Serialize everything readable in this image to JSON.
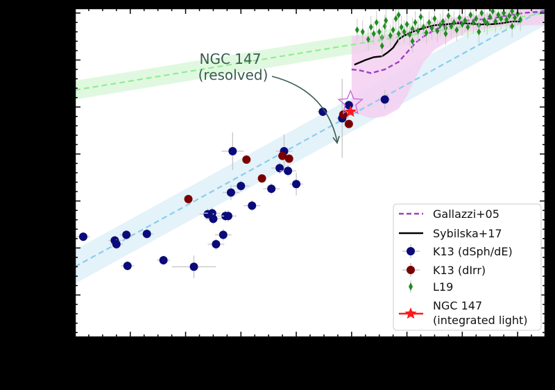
{
  "chart_data": {
    "type": "scatter",
    "title": "",
    "xlabel": "",
    "ylabel": "",
    "xlim": [
      4.0,
      12.5
    ],
    "ylim": [
      -2.95,
      0.55
    ],
    "grid": false,
    "legend": {
      "placement": "lower-right"
    },
    "colors": {
      "background": "#000000",
      "plot_bg": "#ffffff",
      "gallazzi": "#9b3fc4",
      "sybilska": "#000000",
      "k13_dsph": "#0a0a7a",
      "k13_dirr": "#7a0000",
      "l19": "#228b22",
      "ngc147": "#ff1a1a",
      "mzr_low": "#87ceeb",
      "mzr_high": "#90ee90",
      "band_low": "#dbeef7",
      "band_high": "#d6f5d6",
      "band_gallazzi": "#f4cdf0",
      "errorbar": "#c8c8c8",
      "annotation": "#3a5a50",
      "open_star": "#c76ad6"
    },
    "annotation": {
      "text_line1": "NGC 147",
      "text_line2": "(resolved)",
      "target": {
        "x": 8.95,
        "y": -0.48
      }
    },
    "lines": [
      {
        "name": "Gallazzi+05",
        "style": "dashed",
        "x": [
          9.0,
          9.15,
          9.35,
          9.6,
          9.85,
          10.0,
          10.15,
          10.3,
          10.5,
          10.7,
          10.9,
          11.1,
          11.3,
          11.5,
          11.7,
          11.9,
          12.1,
          12.3,
          12.5
        ],
        "y": [
          -0.1,
          -0.11,
          -0.14,
          -0.1,
          -0.02,
          0.08,
          0.18,
          0.25,
          0.32,
          0.37,
          0.4,
          0.42,
          0.43,
          0.44,
          0.46,
          0.48,
          0.5,
          0.51,
          0.52
        ],
        "band_upper": [
          0.25,
          0.26,
          0.26,
          0.27,
          0.29,
          0.31,
          0.34,
          0.37,
          0.41,
          0.44,
          0.46,
          0.47,
          0.48,
          0.49,
          0.5,
          0.52,
          0.55,
          0.56,
          0.57
        ],
        "band_lower": [
          -0.55,
          -0.58,
          -0.62,
          -0.6,
          -0.52,
          -0.38,
          -0.2,
          -0.02,
          0.11,
          0.18,
          0.25,
          0.3,
          0.32,
          0.34,
          0.36,
          0.37,
          0.37,
          0.37,
          0.37
        ]
      },
      {
        "name": "Sybilska+17",
        "style": "solid",
        "x": [
          9.05,
          9.25,
          9.4,
          9.55,
          9.65,
          9.75,
          9.85,
          9.95,
          10.1,
          10.3,
          10.5,
          10.7,
          10.9,
          11.1,
          11.3,
          11.5,
          11.7,
          11.9,
          12.05
        ],
        "y": [
          -0.05,
          0.0,
          0.03,
          0.04,
          0.08,
          0.13,
          0.22,
          0.26,
          0.3,
          0.34,
          0.37,
          0.38,
          0.39,
          0.39,
          0.38,
          0.38,
          0.39,
          0.41,
          0.41
        ]
      }
    ],
    "relations": [
      {
        "style": "dashed",
        "x": [
          4.0,
          12.5
        ],
        "y": [
          -2.2,
          0.55
        ],
        "band_halfwidth": 0.18
      },
      {
        "style": "dashed",
        "x": [
          4.0,
          12.5
        ],
        "y": [
          -0.32,
          0.5
        ],
        "band_halfwidth": 0.1
      }
    ],
    "series": [
      {
        "name": "K13 (dSph/dE)",
        "marker": "circle",
        "points": [
          {
            "x": 4.15,
            "y": -1.88,
            "xerr": 0.12,
            "yerr": 0.05
          },
          {
            "x": 4.72,
            "y": -1.92,
            "xerr": 0.12,
            "yerr": 0.05
          },
          {
            "x": 4.75,
            "y": -1.96,
            "xerr": 0.12,
            "yerr": 0.05
          },
          {
            "x": 4.93,
            "y": -1.86,
            "xerr": 0.12,
            "yerr": 0.05
          },
          {
            "x": 4.95,
            "y": -2.19,
            "xerr": 0.12,
            "yerr": 0.05
          },
          {
            "x": 5.3,
            "y": -1.85,
            "xerr": 0.12,
            "yerr": 0.05
          },
          {
            "x": 5.6,
            "y": -2.13,
            "xerr": 0.12,
            "yerr": 0.05
          },
          {
            "x": 6.15,
            "y": -2.2,
            "xerr": 0.4,
            "yerr": 0.12
          },
          {
            "x": 6.4,
            "y": -1.64,
            "xerr": 0.15,
            "yerr": 0.06
          },
          {
            "x": 6.48,
            "y": -1.63,
            "xerr": 0.15,
            "yerr": 0.06
          },
          {
            "x": 6.5,
            "y": -1.69,
            "xerr": 0.15,
            "yerr": 0.06
          },
          {
            "x": 6.55,
            "y": -1.96,
            "xerr": 0.15,
            "yerr": 0.06
          },
          {
            "x": 6.68,
            "y": -1.86,
            "xerr": 0.15,
            "yerr": 0.06
          },
          {
            "x": 6.72,
            "y": -1.66,
            "xerr": 0.15,
            "yerr": 0.06
          },
          {
            "x": 6.77,
            "y": -1.66,
            "xerr": 0.15,
            "yerr": 0.06
          },
          {
            "x": 6.82,
            "y": -1.41,
            "xerr": 0.15,
            "yerr": 0.08
          },
          {
            "x": 6.85,
            "y": -0.97,
            "xerr": 0.2,
            "yerr": 0.2
          },
          {
            "x": 7.0,
            "y": -1.34,
            "xerr": 0.15,
            "yerr": 0.06
          },
          {
            "x": 7.2,
            "y": -1.55,
            "xerr": 0.15,
            "yerr": 0.06
          },
          {
            "x": 7.55,
            "y": -1.37,
            "xerr": 0.15,
            "yerr": 0.06
          },
          {
            "x": 7.7,
            "y": -1.15,
            "xerr": 0.15,
            "yerr": 0.06
          },
          {
            "x": 7.78,
            "y": -0.97,
            "xerr": 0.15,
            "yerr": 0.18
          },
          {
            "x": 7.85,
            "y": -1.18,
            "xerr": 0.15,
            "yerr": 0.06
          },
          {
            "x": 8.0,
            "y": -1.32,
            "xerr": 0.12,
            "yerr": 0.12
          },
          {
            "x": 8.48,
            "y": -0.55,
            "xerr": 0.1,
            "yerr": 0.05
          },
          {
            "x": 8.83,
            "y": -0.62,
            "xerr": 0.1,
            "yerr": 0.42
          },
          {
            "x": 8.95,
            "y": -0.48,
            "xerr": 0.1,
            "yerr": 0.05
          },
          {
            "x": 9.6,
            "y": -0.42,
            "xerr": 0.1,
            "yerr": 0.1
          }
        ]
      },
      {
        "name": "K13 (dIrr)",
        "marker": "circle",
        "points": [
          {
            "x": 6.05,
            "y": -1.48,
            "xerr": 0.0,
            "yerr": 0.0
          },
          {
            "x": 7.1,
            "y": -1.06,
            "xerr": 0.0,
            "yerr": 0.0
          },
          {
            "x": 7.38,
            "y": -1.26,
            "xerr": 0.0,
            "yerr": 0.0
          },
          {
            "x": 7.75,
            "y": -1.02,
            "xerr": 0.0,
            "yerr": 0.0
          },
          {
            "x": 7.87,
            "y": -1.05,
            "xerr": 0.0,
            "yerr": 0.0
          },
          {
            "x": 8.85,
            "y": -0.58,
            "xerr": 0.0,
            "yerr": 0.0
          },
          {
            "x": 8.95,
            "y": -0.68,
            "xerr": 0.0,
            "yerr": 0.0
          }
        ]
      },
      {
        "name": "L19",
        "marker": "diamond",
        "points": [
          {
            "x": 9.1,
            "y": 0.32
          },
          {
            "x": 9.2,
            "y": 0.3
          },
          {
            "x": 9.3,
            "y": 0.22
          },
          {
            "x": 9.35,
            "y": 0.35
          },
          {
            "x": 9.4,
            "y": 0.28
          },
          {
            "x": 9.45,
            "y": 0.4
          },
          {
            "x": 9.5,
            "y": 0.3
          },
          {
            "x": 9.55,
            "y": 0.24
          },
          {
            "x": 9.6,
            "y": 0.36
          },
          {
            "x": 9.62,
            "y": 0.42
          },
          {
            "x": 9.7,
            "y": 0.26
          },
          {
            "x": 9.75,
            "y": 0.32
          },
          {
            "x": 9.8,
            "y": 0.44
          },
          {
            "x": 9.85,
            "y": 0.28
          },
          {
            "x": 9.9,
            "y": 0.35
          },
          {
            "x": 9.95,
            "y": 0.3
          },
          {
            "x": 10.0,
            "y": 0.38
          },
          {
            "x": 10.05,
            "y": 0.27
          },
          {
            "x": 10.1,
            "y": 0.33
          },
          {
            "x": 10.15,
            "y": 0.4
          },
          {
            "x": 10.2,
            "y": 0.31
          },
          {
            "x": 10.25,
            "y": 0.46
          },
          {
            "x": 10.3,
            "y": 0.35
          },
          {
            "x": 10.35,
            "y": 0.29
          },
          {
            "x": 10.4,
            "y": 0.4
          },
          {
            "x": 10.45,
            "y": 0.34
          },
          {
            "x": 10.5,
            "y": 0.44
          },
          {
            "x": 10.55,
            "y": 0.31
          },
          {
            "x": 10.6,
            "y": 0.37
          },
          {
            "x": 10.65,
            "y": 0.41
          },
          {
            "x": 10.7,
            "y": 0.34
          },
          {
            "x": 10.75,
            "y": 0.47
          },
          {
            "x": 10.8,
            "y": 0.36
          },
          {
            "x": 10.85,
            "y": 0.4
          },
          {
            "x": 10.9,
            "y": 0.32
          },
          {
            "x": 10.95,
            "y": 0.45
          },
          {
            "x": 11.0,
            "y": 0.38
          },
          {
            "x": 11.05,
            "y": 0.42
          },
          {
            "x": 11.1,
            "y": 0.35
          },
          {
            "x": 11.15,
            "y": 0.48
          },
          {
            "x": 11.2,
            "y": 0.4
          },
          {
            "x": 11.25,
            "y": 0.44
          },
          {
            "x": 11.3,
            "y": 0.37
          },
          {
            "x": 11.35,
            "y": 0.5
          },
          {
            "x": 11.4,
            "y": 0.42
          },
          {
            "x": 11.45,
            "y": 0.39
          },
          {
            "x": 11.5,
            "y": 0.46
          },
          {
            "x": 11.55,
            "y": 0.52
          },
          {
            "x": 11.6,
            "y": 0.41
          },
          {
            "x": 11.65,
            "y": 0.48
          },
          {
            "x": 11.7,
            "y": 0.44
          },
          {
            "x": 11.75,
            "y": 0.5
          },
          {
            "x": 11.8,
            "y": 0.43
          },
          {
            "x": 11.85,
            "y": 0.47
          },
          {
            "x": 11.9,
            "y": 0.52
          },
          {
            "x": 11.95,
            "y": 0.45
          },
          {
            "x": 12.0,
            "y": 0.49
          },
          {
            "x": 12.05,
            "y": 0.43
          },
          {
            "x": 9.55,
            "y": 0.15
          },
          {
            "x": 9.85,
            "y": 0.48
          },
          {
            "x": 10.1,
            "y": 0.2
          },
          {
            "x": 10.7,
            "y": 0.28
          },
          {
            "x": 11.3,
            "y": 0.3
          },
          {
            "x": 11.9,
            "y": 0.36
          }
        ]
      },
      {
        "name": "NGC 147\n(integrated light)",
        "marker": "star",
        "points": [
          {
            "x": 8.98,
            "y": -0.55,
            "xerr": 0.06,
            "yerr": 0.04
          }
        ]
      }
    ]
  },
  "legend_entries": {
    "gallazzi": "Gallazzi+05",
    "sybilska": "Sybilska+17",
    "k13_dsph": "K13 (dSph/dE)",
    "k13_dirr": "K13 (dIrr)",
    "l19": "L19",
    "ngc147_line1": "NGC 147",
    "ngc147_line2": "(integrated light)"
  }
}
